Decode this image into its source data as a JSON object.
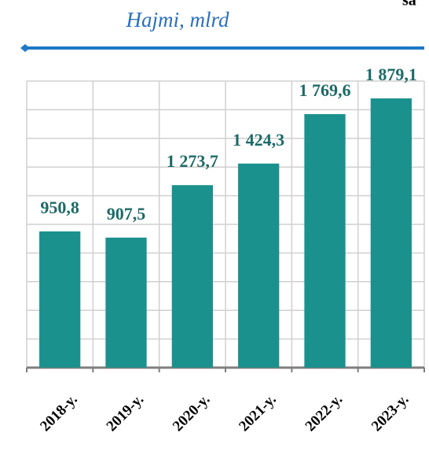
{
  "chart_data": {
    "type": "bar",
    "title": "Hajmi, mlrd",
    "annotation": "sa",
    "categories": [
      "2018-y.",
      "2019-y.",
      "2020-y.",
      "2021-y.",
      "2022-y.",
      "2023-y."
    ],
    "values": [
      950.8,
      907.5,
      1273.7,
      1424.3,
      1769.6,
      1879.1
    ],
    "value_labels": [
      "950,8",
      "907,5",
      "1 273,7",
      "1 424,3",
      "1 769,6",
      "1 879,1"
    ],
    "color": "#1b918d",
    "ylim": [
      0,
      2000
    ],
    "yticks": [
      0,
      200,
      400,
      600,
      800,
      1000,
      1200,
      1400,
      1600,
      1800,
      2000
    ],
    "grid": true
  }
}
